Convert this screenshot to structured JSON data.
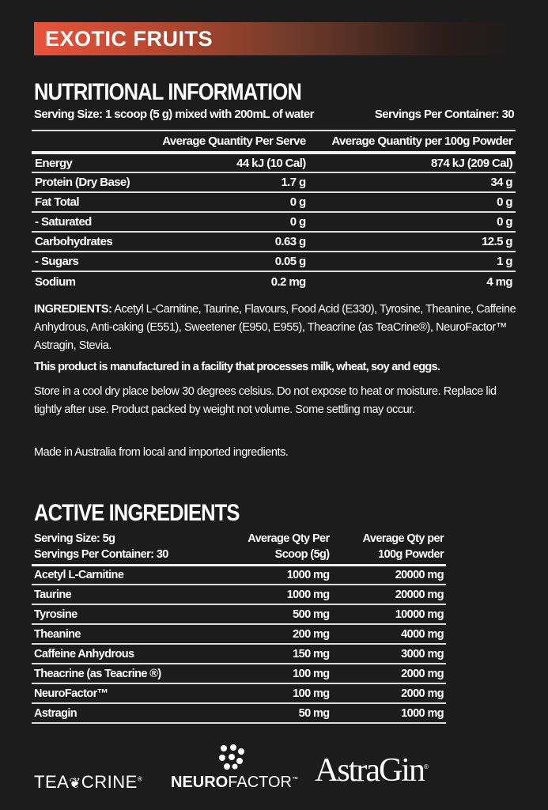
{
  "banner": {
    "flavour": "EXOTIC FRUITS",
    "gradient_start": "#e8533a"
  },
  "nutrition": {
    "title": "NUTRITIONAL INFORMATION",
    "serving_size": "Serving Size: 1 scoop (5 g) mixed with 200mL of water",
    "servings_per_container": "Servings Per Container: 30",
    "headers": [
      "",
      "Average Quantity Per Serve",
      "Average Quantity per 100g Powder"
    ],
    "rows": [
      [
        "Energy",
        "44 kJ (10 Cal)",
        "874 kJ (209 Cal)"
      ],
      [
        "Protein  (Dry Base)",
        "1.7 g",
        "34 g"
      ],
      [
        "Fat Total",
        "0 g",
        "0 g"
      ],
      [
        "- Saturated",
        "0 g",
        "0 g"
      ],
      [
        "Carbohydrates",
        "0.63 g",
        "12.5 g"
      ],
      [
        "- Sugars",
        "0.05 g",
        "1 g"
      ],
      [
        "Sodium",
        "0.2 mg",
        "4 mg"
      ]
    ]
  },
  "ingredients": {
    "label": "INGREDIENTS:",
    "text": " Acetyl L-Carnitine, Taurine, Flavours, Food Acid (E330), Tyrosine, Theanine, Caffeine Anhydrous, Anti-caking (E551), Sweetener (E950, E955), Theacrine (as TeaCrine®), NeuroFactor™ Astragin, Stevia."
  },
  "allergen": "This product is manufactured in a facility that processes milk, wheat, soy and eggs.",
  "storage": "Store in a cool dry place below 30 degrees celsius. Do not expose to heat or moisture. Replace lid tightly after use. Product packed by weight not volume. Some settling may occur.",
  "origin": "Made in Australia from local and imported ingredients.",
  "active": {
    "title": "ACTIVE INGREDIENTS",
    "serving_size": "Serving Size: 5g",
    "servings_per_container": "Servings Per Container: 30",
    "header_col1_a": "Average Qty Per",
    "header_col1_b": "Scoop (5g)",
    "header_col2_a": "Average Qty per",
    "header_col2_b": "100g Powder",
    "rows": [
      [
        "Acetyl L-Carnitine",
        "1000 mg",
        "20000 mg"
      ],
      [
        "Taurine",
        "1000 mg",
        "20000 mg"
      ],
      [
        "Tyrosine",
        "500 mg",
        "10000 mg"
      ],
      [
        "Theanine",
        "200 mg",
        "4000 mg"
      ],
      [
        "Caffeine Anhydrous",
        "150 mg",
        "3000 mg"
      ],
      [
        "Theacrine (as Teacrine ®)",
        "100 mg",
        "2000 mg"
      ],
      [
        "NeuroFactor™",
        "100 mg",
        "2000 mg"
      ],
      [
        "Astragin",
        "50 mg",
        "1000 mg"
      ]
    ]
  },
  "logos": [
    "TEACRINE",
    "NEUROFACTOR",
    "AstraGin"
  ]
}
